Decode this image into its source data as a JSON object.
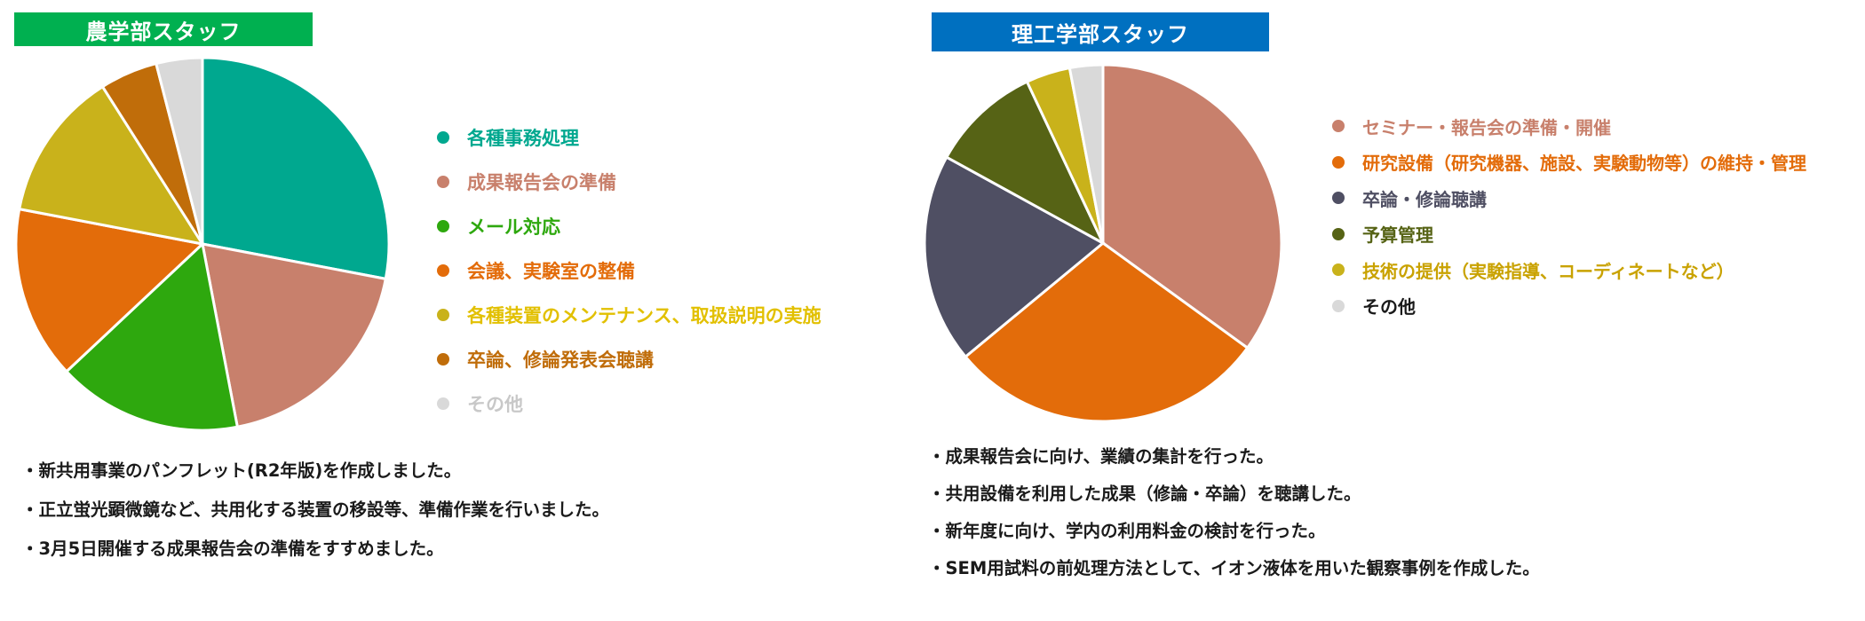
{
  "chart_data": [
    {
      "type": "pie",
      "title": "農学部スタッフ",
      "title_color": "#00b050",
      "legend_position": "right",
      "slices": [
        {
          "label": "各種事務処理",
          "value": 28,
          "color": "#00a88f"
        },
        {
          "label": "成果報告会の準備",
          "value": 19,
          "color": "#c8806c"
        },
        {
          "label": "メール対応",
          "value": 16,
          "color": "#2ea80e"
        },
        {
          "label": "会議、実験室の整備",
          "value": 15,
          "color": "#e36c0a"
        },
        {
          "label": "各種装置のメンテナンス、取扱説明の実施",
          "value": 13,
          "color": "#c9b21b"
        },
        {
          "label": "卒論、修論発表会聴講",
          "value": 5,
          "color": "#c06d0a"
        },
        {
          "label": "その他",
          "value": 4,
          "color": "#d9d9d9"
        }
      ],
      "legend_text_colors": [
        "#00a88f",
        "#c8806c",
        "#2ea80e",
        "#e36c0a",
        "#e2c000",
        "#c06d0a",
        "#c8c8c8"
      ],
      "notes": [
        "・新共用事業のパンフレット(R2年版)を作成しました。",
        "・正立蛍光顕微鏡など、共用化する装置の移設等、準備作業を行いました。",
        "・3月5日開催する成果報告会の準備をすすめました。"
      ]
    },
    {
      "type": "pie",
      "title": "理工学部スタッフ",
      "title_color": "#0070c0",
      "legend_position": "right",
      "slices": [
        {
          "label": "セミナー・報告会の準備・開催",
          "value": 35,
          "color": "#c8806c"
        },
        {
          "label": "研究設備（研究機器、施設、実験動物等）の維持・管理",
          "value": 29,
          "color": "#e36c0a"
        },
        {
          "label": "卒論・修論聴講",
          "value": 19,
          "color": "#4f4f63"
        },
        {
          "label": "予算管理",
          "value": 10,
          "color": "#566315"
        },
        {
          "label": "技術の提供（実験指導、コーディネートなど）",
          "value": 4,
          "color": "#c9b21b"
        },
        {
          "label": "その他",
          "value": 3,
          "color": "#d9d9d9"
        }
      ],
      "legend_text_colors": [
        "#c8806c",
        "#e36c0a",
        "#4f4f63",
        "#566315",
        "#c9a200",
        "#1a1a1a"
      ],
      "notes": [
        "・成果報告会に向け、業績の集計を行った。",
        "・共用設備を利用した成果（修論・卒論）を聴講した。",
        "・新年度に向け、学内の利用料金の検討を行った。",
        "・SEM用試料の前処理方法として、イオン液体を用いた観察事例を作成した。"
      ]
    }
  ]
}
